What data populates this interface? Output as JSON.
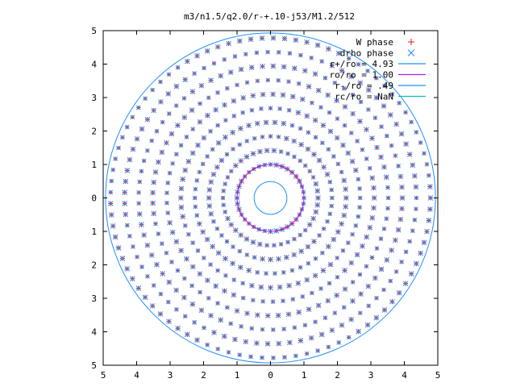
{
  "chart_data": {
    "type": "scatter",
    "title": "m3/n1.5/q2.0/r-+.10-j53/M1.2/512",
    "xlim": [
      -5,
      5
    ],
    "ylim": [
      -5,
      5
    ],
    "x_tick_labels": [
      "5",
      "4",
      "3",
      "2",
      "1",
      "0",
      "1",
      "2",
      "3",
      "4",
      "5"
    ],
    "y_tick_labels": [
      "5",
      "4",
      "3",
      "2",
      "1",
      "0",
      "1",
      "2",
      "3",
      "4",
      "5"
    ],
    "grid": false,
    "legend_position": "top-right",
    "spiral": {
      "arms": 3,
      "r_inner": 0.6,
      "r_outer": 4.8,
      "turns": 1.6
    },
    "series": [
      {
        "name": "W phase",
        "marker": "+",
        "color": "#e41a1c"
      },
      {
        "name": "drho phase",
        "marker": "x",
        "color": "#1e90ff"
      }
    ],
    "circles": [
      {
        "name": "r+/ro = 4.93",
        "radius": 4.93,
        "color": "#1e90ff"
      },
      {
        "name": "ro/ro = 1.00",
        "radius": 1.0,
        "color": "#b01ee0"
      },
      {
        "name": "r-/ro = .49",
        "radius": 0.49,
        "color": "#1e90ff"
      },
      {
        "name": "rc/ro = NaN",
        "radius": null,
        "color": "#00c0c0"
      }
    ]
  }
}
